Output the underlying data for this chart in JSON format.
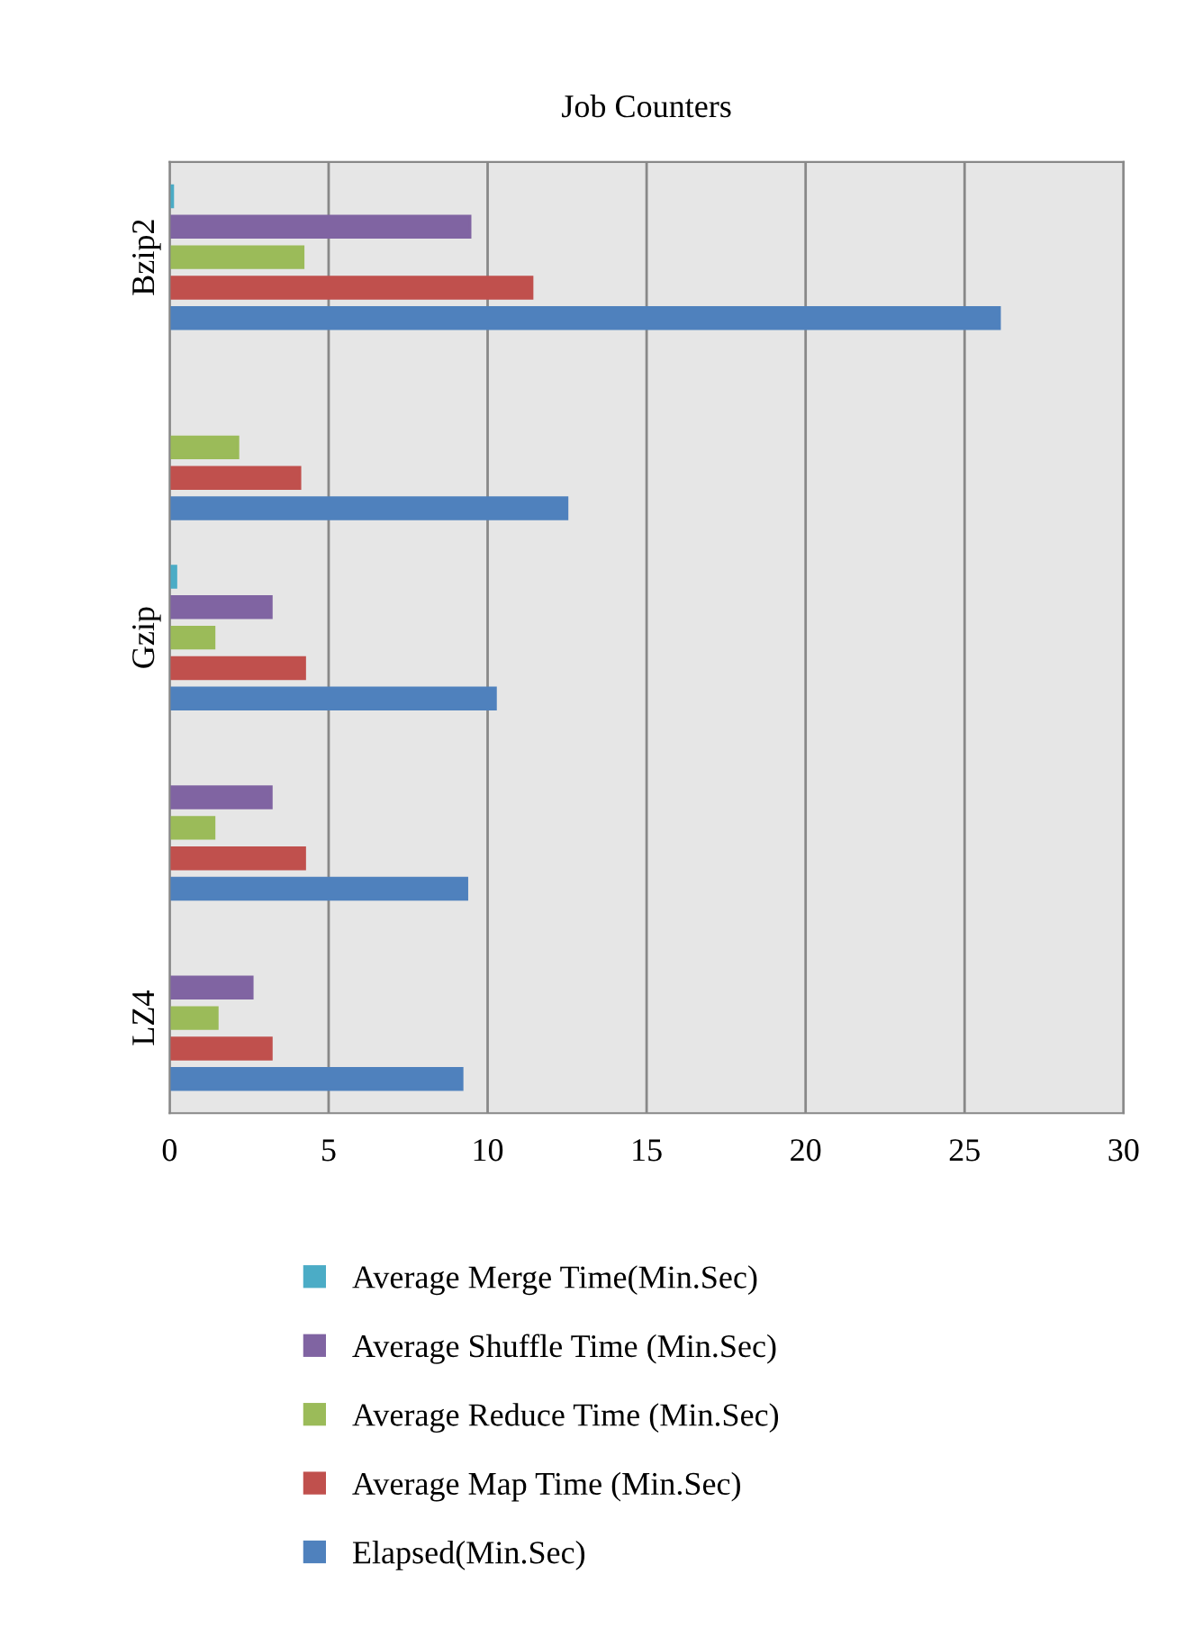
{
  "chart_data": {
    "type": "bar",
    "orientation": "horizontal",
    "title": "Job Counters",
    "categories": [
      "Bzip2",
      null,
      "Gzip",
      null,
      "LZ4"
    ],
    "series": [
      {
        "name": "Elapsed(Min.Sec)",
        "color": "#4f81bd",
        "values": [
          26.1,
          12.5,
          10.25,
          9.35,
          9.2
        ]
      },
      {
        "name": "Average Map Time (Min.Sec)",
        "color": "#c0504d",
        "values": [
          11.4,
          4.1,
          4.25,
          4.25,
          3.2
        ]
      },
      {
        "name": "Average Reduce Time (Min.Sec)",
        "color": "#9bbb59",
        "values": [
          4.2,
          2.15,
          1.4,
          1.4,
          1.5
        ]
      },
      {
        "name": "Average Shuffle Time (Min.Sec)",
        "color": "#8064a2",
        "values": [
          9.45,
          null,
          3.2,
          3.2,
          2.6
        ]
      },
      {
        "name": "Average Merge Time(Min.Sec)",
        "color": "#4bacc6",
        "values": [
          0.1,
          null,
          0.2,
          null,
          null
        ]
      }
    ],
    "xlim": [
      0,
      30
    ],
    "xticks": [
      0,
      5,
      10,
      15,
      20,
      25,
      30
    ],
    "grid": "x",
    "legend": "bottom"
  }
}
